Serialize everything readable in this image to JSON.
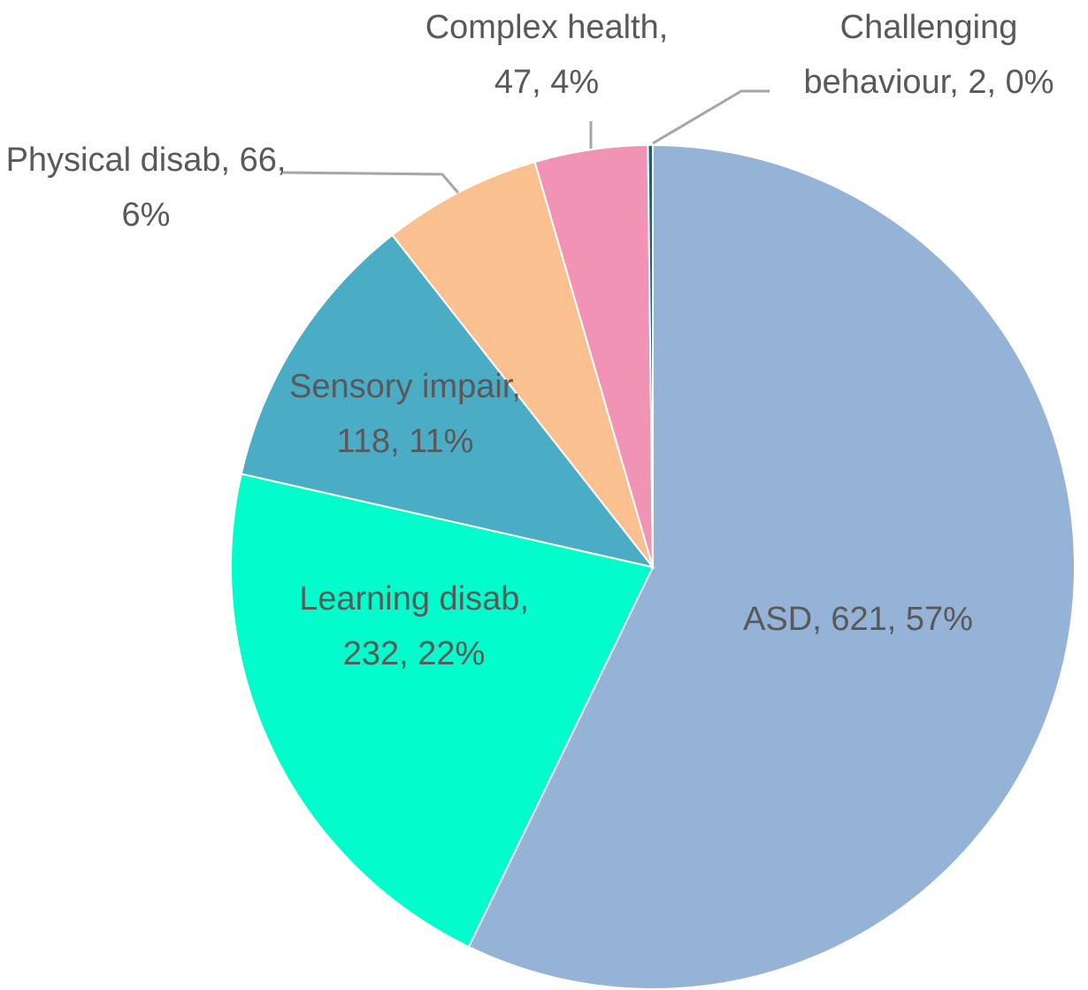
{
  "chart_data": {
    "type": "pie",
    "labels": [
      "ASD, 621, 57%",
      "Learning disab, 232, 22%",
      "Sensory impair, 118, 11%",
      "Physical disab, 66, 6%",
      "Complex health, 47, 4%",
      "Challenging behaviour, 2, 0%"
    ],
    "values": [
      621,
      232,
      118,
      66,
      47,
      2
    ],
    "colors": [
      "#95b3d7",
      "#00fdcb",
      "#4bacc6",
      "#fac090",
      "#f093b4",
      "#1f5f7a"
    ]
  }
}
